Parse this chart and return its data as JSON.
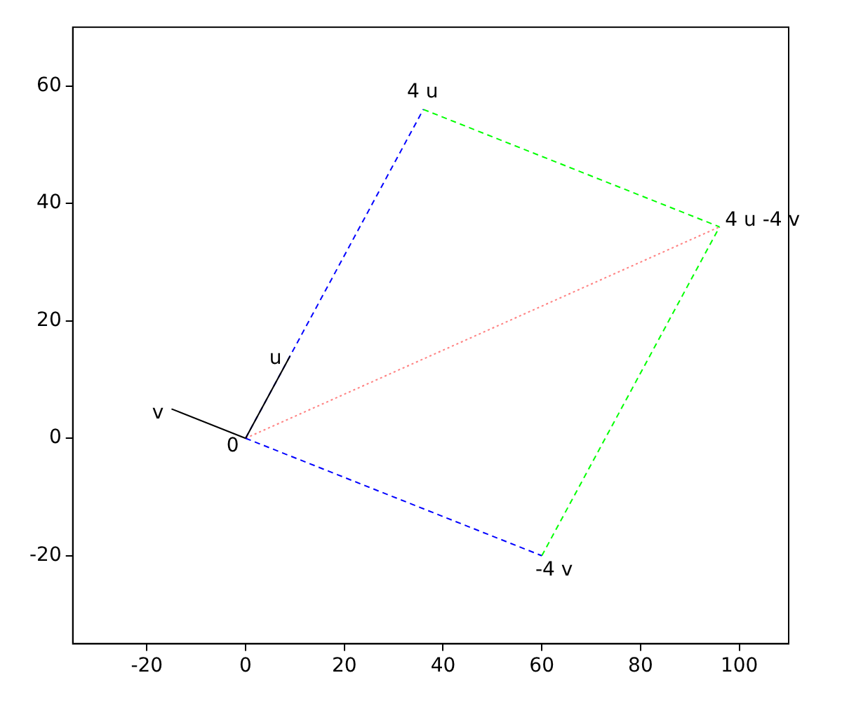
{
  "chart_data": {
    "type": "line",
    "xlim": [
      -35,
      110
    ],
    "ylim": [
      -35,
      70
    ],
    "xticks": [
      -20,
      0,
      20,
      40,
      60,
      80,
      100
    ],
    "yticks": [
      -20,
      0,
      20,
      40,
      60
    ],
    "grid": false,
    "legend": false,
    "marker": "none",
    "series": [
      {
        "color": "#000000",
        "x": [
          0,
          9
        ],
        "values": [
          0,
          14
        ],
        "line_style": "solid"
      },
      {
        "color": "#000000",
        "x": [
          0,
          -15
        ],
        "values": [
          0,
          5
        ],
        "line_style": "solid"
      },
      {
        "color": "#0000ff",
        "x": [
          0,
          36
        ],
        "values": [
          0,
          56
        ],
        "line_style": "dashed"
      },
      {
        "color": "#0000ff",
        "x": [
          0,
          60
        ],
        "values": [
          0,
          -20
        ],
        "line_style": "dashed"
      },
      {
        "color": "#00ff00",
        "x": [
          36,
          96
        ],
        "values": [
          56,
          36
        ],
        "line_style": "dashed"
      },
      {
        "color": "#00ff00",
        "x": [
          60,
          96
        ],
        "values": [
          -20,
          36
        ],
        "line_style": "dashed"
      },
      {
        "color": "#ff8080",
        "x": [
          0,
          96
        ],
        "values": [
          0,
          36
        ],
        "line_style": "dotted"
      }
    ],
    "annotations": [
      {
        "text": "u",
        "x": 9,
        "y": 14
      },
      {
        "text": "v",
        "x": -15,
        "y": 5
      },
      {
        "text": "0",
        "x": 0,
        "y": 0
      },
      {
        "text": "4 u",
        "x": 36,
        "y": 56
      },
      {
        "text": "-4 v",
        "x": 60,
        "y": -20
      },
      {
        "text": "4 u -4 v",
        "x": 96,
        "y": 36
      }
    ]
  }
}
